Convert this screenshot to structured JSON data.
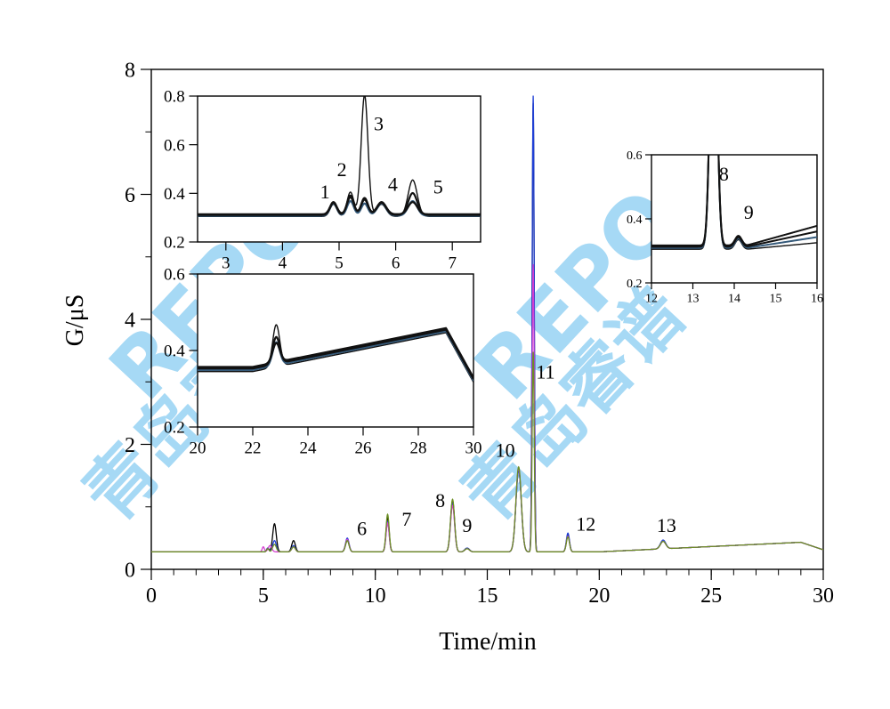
{
  "watermark": {
    "latin": "REPO",
    "cjk": "青岛睿谱",
    "color": "#2ba4e6"
  },
  "chart_data": {
    "type": "line",
    "xlabel": "Time/min",
    "ylabel": "G/μS",
    "xlim": [
      0,
      30
    ],
    "ylim": [
      0,
      8
    ],
    "x_ticks": [
      "0",
      "5",
      "10",
      "15",
      "20",
      "25",
      "30"
    ],
    "y_ticks": [
      "0",
      "2",
      "4",
      "6",
      "8"
    ],
    "baseline": 0.28,
    "series": [
      {
        "color": "#000000",
        "peaks": [
          [
            5.2,
            0.06,
            0.05
          ],
          [
            5.5,
            0.45,
            0.08
          ],
          [
            6.35,
            0.18,
            0.08
          ],
          [
            8.75,
            0.18,
            0.08
          ],
          [
            10.55,
            0.55,
            0.07
          ],
          [
            13.45,
            0.82,
            0.09
          ],
          [
            14.1,
            0.06,
            0.1
          ],
          [
            16.4,
            1.32,
            0.12
          ],
          [
            17.05,
            7.18,
            0.045
          ],
          [
            18.6,
            0.27,
            0.07
          ],
          [
            22.85,
            0.12,
            0.12
          ]
        ]
      },
      {
        "color": "#1f3fd6",
        "peaks": [
          [
            5.2,
            0.06,
            0.05
          ],
          [
            5.5,
            0.18,
            0.08
          ],
          [
            6.35,
            0.1,
            0.08
          ],
          [
            8.75,
            0.22,
            0.08
          ],
          [
            10.55,
            0.48,
            0.07
          ],
          [
            13.45,
            0.78,
            0.09
          ],
          [
            14.1,
            0.06,
            0.1
          ],
          [
            16.4,
            1.3,
            0.12
          ],
          [
            17.05,
            7.3,
            0.045
          ],
          [
            18.6,
            0.3,
            0.07
          ],
          [
            22.85,
            0.14,
            0.12
          ]
        ]
      },
      {
        "color": "#d33fd0",
        "peaks": [
          [
            5.0,
            0.08,
            0.05
          ],
          [
            5.3,
            0.1,
            0.08
          ],
          [
            6.35,
            0.08,
            0.08
          ],
          [
            8.75,
            0.2,
            0.08
          ],
          [
            10.55,
            0.46,
            0.07
          ],
          [
            13.45,
            0.74,
            0.09
          ],
          [
            14.1,
            0.05,
            0.1
          ],
          [
            16.4,
            1.34,
            0.12
          ],
          [
            17.05,
            4.6,
            0.045
          ],
          [
            18.6,
            0.25,
            0.07
          ],
          [
            22.85,
            0.12,
            0.12
          ]
        ]
      },
      {
        "color": "#6b8e23",
        "peaks": [
          [
            5.2,
            0.05,
            0.05
          ],
          [
            5.5,
            0.12,
            0.08
          ],
          [
            6.35,
            0.08,
            0.08
          ],
          [
            8.75,
            0.18,
            0.08
          ],
          [
            10.55,
            0.6,
            0.07
          ],
          [
            13.45,
            0.84,
            0.09
          ],
          [
            14.1,
            0.05,
            0.1
          ],
          [
            16.4,
            1.36,
            0.12
          ],
          [
            17.05,
            3.2,
            0.045
          ],
          [
            18.6,
            0.24,
            0.07
          ],
          [
            22.85,
            0.12,
            0.12
          ]
        ]
      }
    ],
    "peak_labels": [
      {
        "text": "6",
        "x": 9.4,
        "y": 0.55
      },
      {
        "text": "7",
        "x": 11.4,
        "y": 0.7
      },
      {
        "text": "8",
        "x": 12.9,
        "y": 1.0
      },
      {
        "text": "9",
        "x": 14.1,
        "y": 0.6
      },
      {
        "text": "10",
        "x": 15.8,
        "y": 1.8
      },
      {
        "text": "11",
        "x": 17.6,
        "y": 3.05
      },
      {
        "text": "12",
        "x": 19.4,
        "y": 0.62
      },
      {
        "text": "13",
        "x": 23.0,
        "y": 0.6
      }
    ],
    "insets": [
      {
        "xlim": [
          2.5,
          7.5
        ],
        "ylim": [
          0.2,
          0.8
        ],
        "x_ticks": [
          "3",
          "4",
          "5",
          "6",
          "7"
        ],
        "y_ticks": [
          "0.2",
          "0.4",
          "0.6",
          "0.8"
        ],
        "labels": [
          {
            "text": "1",
            "x": 4.75,
            "y": 0.38
          },
          {
            "text": "2",
            "x": 5.05,
            "y": 0.47
          },
          {
            "text": "3",
            "x": 5.7,
            "y": 0.66
          },
          {
            "text": "4",
            "x": 5.95,
            "y": 0.41
          },
          {
            "text": "5",
            "x": 6.75,
            "y": 0.4
          }
        ]
      },
      {
        "xlim": [
          20,
          30
        ],
        "ylim": [
          0.2,
          0.6
        ],
        "x_ticks": [
          "20",
          "22",
          "24",
          "26",
          "28",
          "30"
        ],
        "y_ticks": [
          "0.2",
          "0.4",
          "0.6"
        ],
        "labels": []
      },
      {
        "xlim": [
          12,
          16
        ],
        "ylim": [
          0.2,
          0.6
        ],
        "x_ticks": [
          "12",
          "13",
          "14",
          "15",
          "16"
        ],
        "y_ticks": [
          "0.2",
          "0.4",
          "0.6"
        ],
        "labels": [
          {
            "text": "8",
            "x": 13.75,
            "y": 0.52
          },
          {
            "text": "9",
            "x": 14.35,
            "y": 0.4
          }
        ]
      }
    ]
  }
}
